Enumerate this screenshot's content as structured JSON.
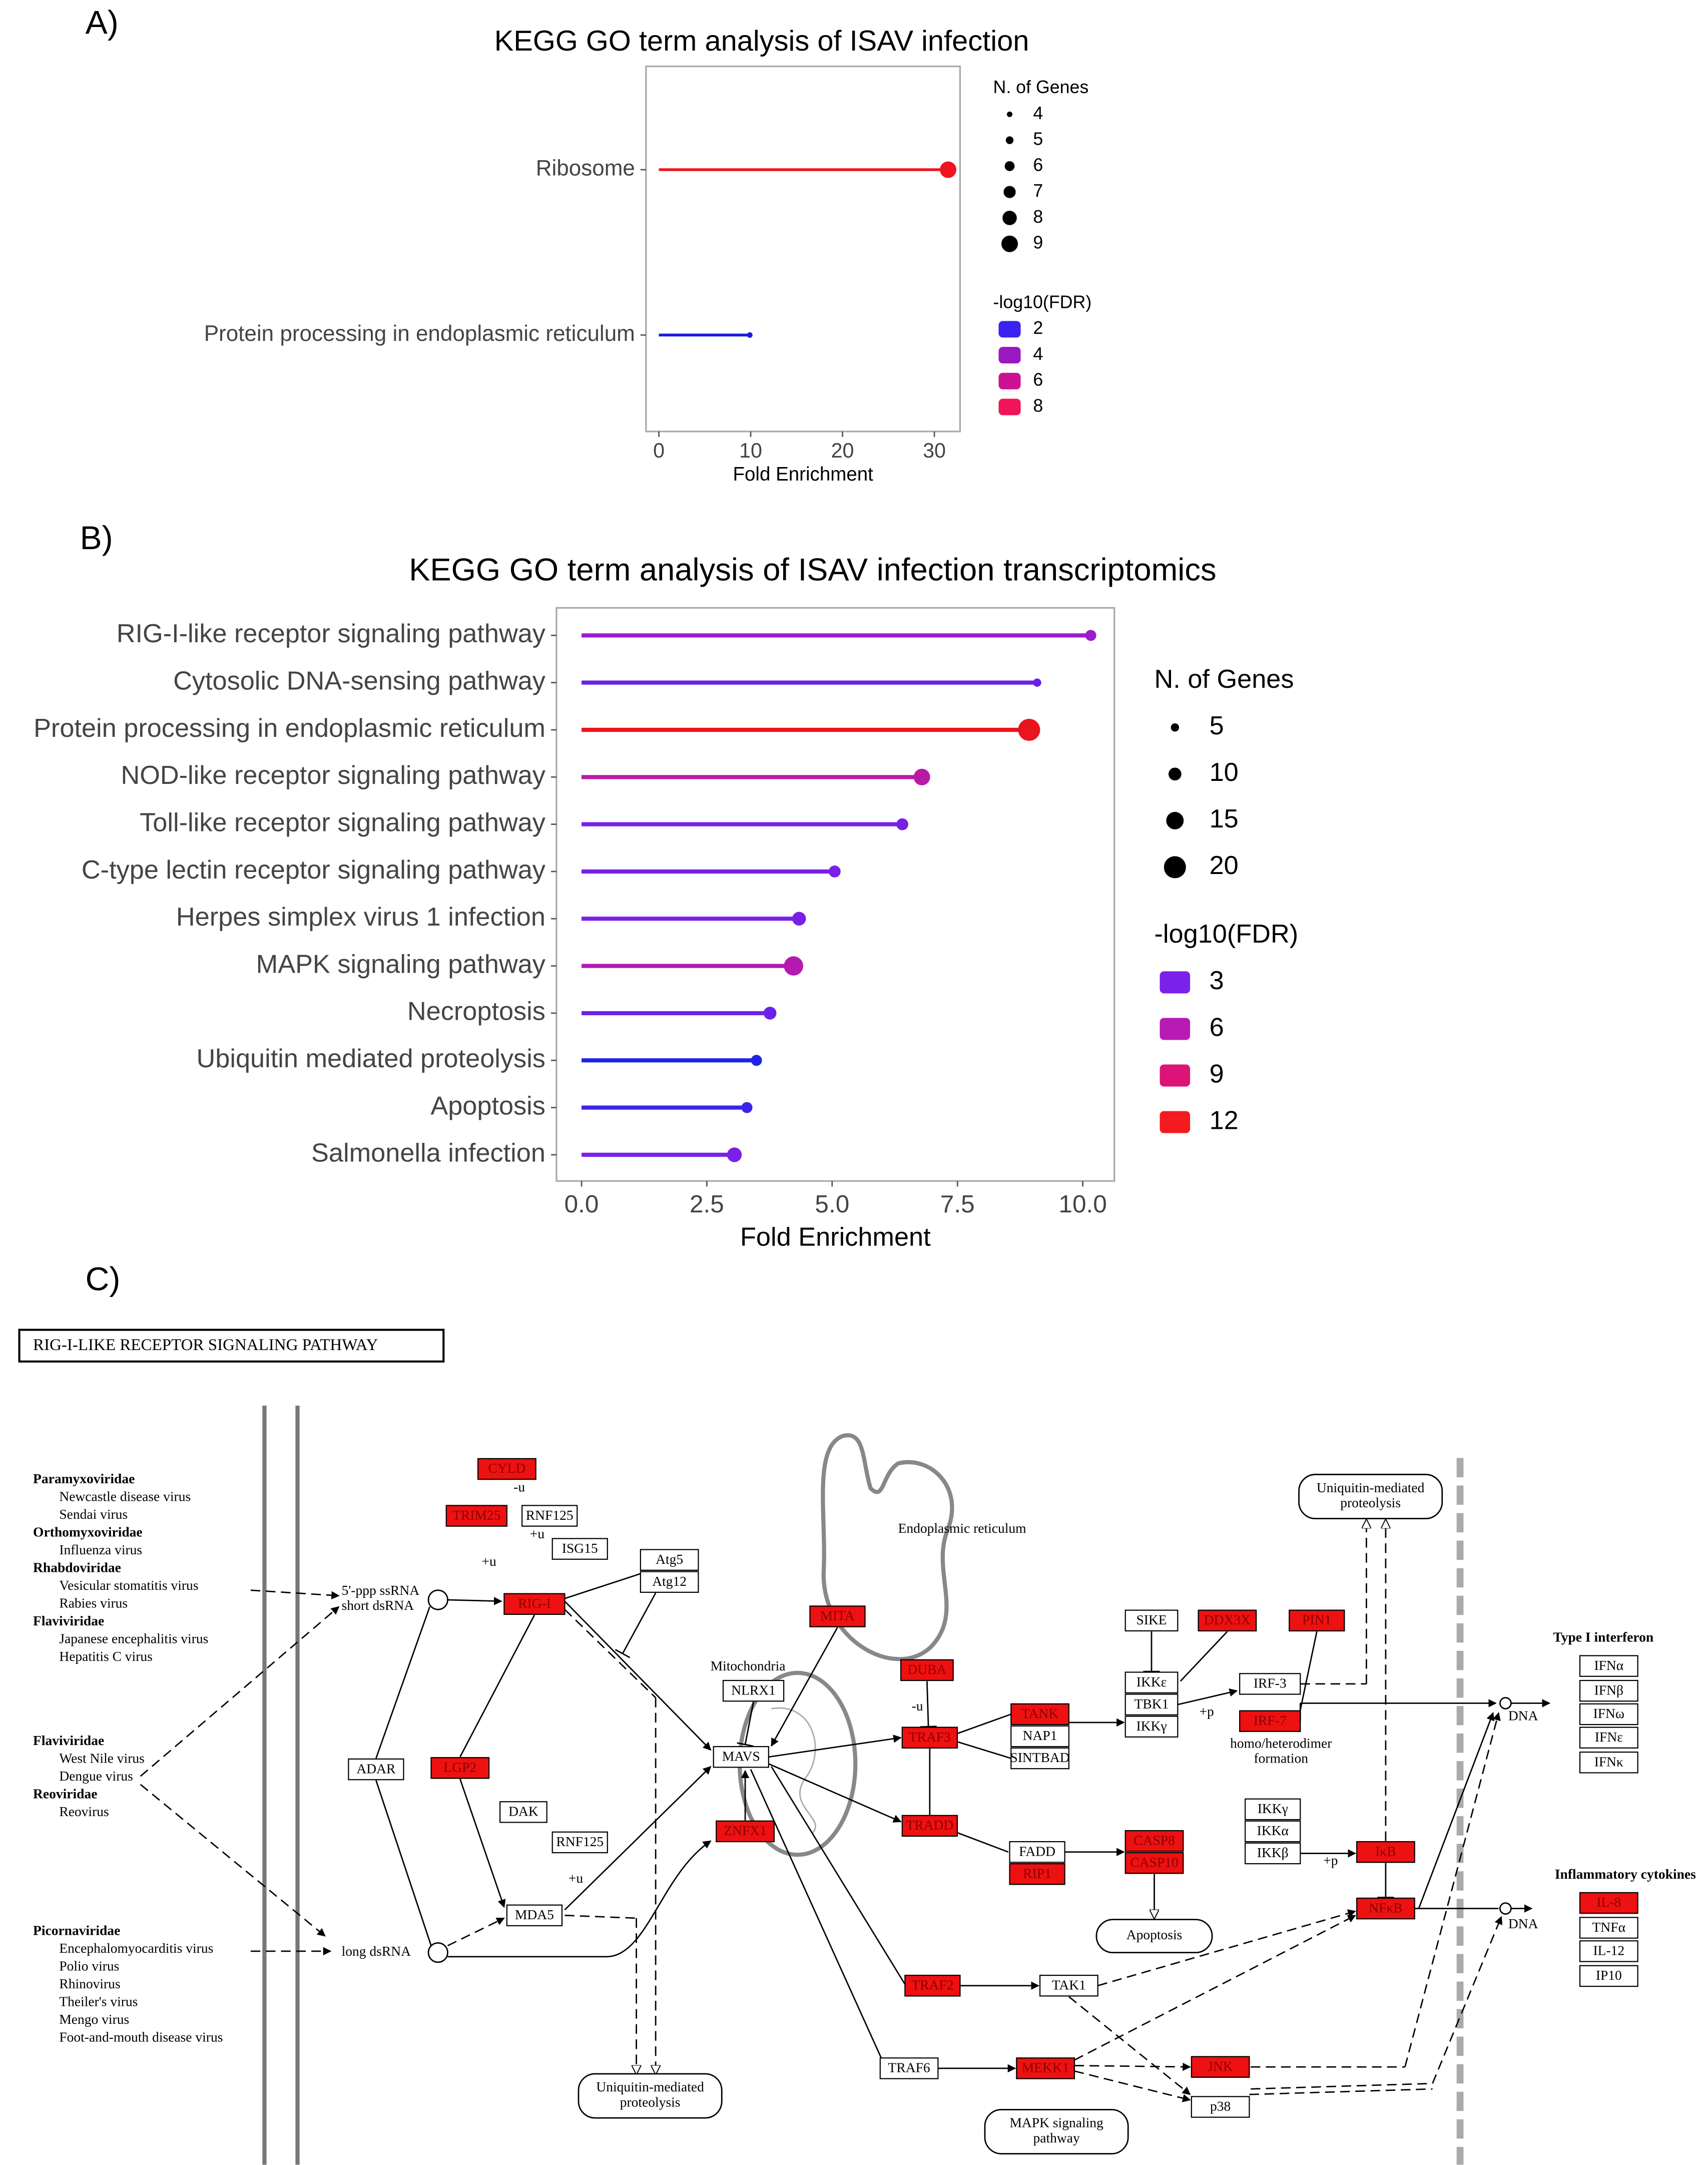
{
  "panels": [
    "A)",
    "B)",
    "C)"
  ],
  "chart_data": [
    {
      "type": "lollipop",
      "title": "KEGG GO term analysis of ISAV infection",
      "xlabel": "Fold Enrichment",
      "categories": [
        "Ribosome",
        "Protein processing in endoplasmic reticulum"
      ],
      "values": [
        31.5,
        9.9
      ],
      "point_colors": [
        "#f0141e",
        "#1a1ae0"
      ],
      "sizes": [
        9,
        4
      ],
      "xlim": [
        -1.4,
        32.8
      ],
      "xticks": [
        0,
        10,
        20,
        30
      ],
      "size_legend": {
        "title": "N. of Genes",
        "values": [
          4,
          5,
          6,
          7,
          8,
          9
        ]
      },
      "color_legend": {
        "title": "-log10(FDR)",
        "values": [
          2,
          4,
          6,
          8
        ],
        "colors": [
          "#3a22f0",
          "#9a18c0",
          "#cc1290",
          "#f0145a"
        ]
      }
    },
    {
      "type": "lollipop",
      "title": "KEGG GO term analysis of ISAV infection transcriptomics",
      "xlabel": "Fold Enrichment",
      "categories": [
        "RIG-I-like receptor signaling pathway",
        "Cytosolic DNA-sensing pathway",
        "Protein processing in endoplasmic reticulum",
        "NOD-like receptor signaling pathway",
        "Toll-like receptor signaling pathway",
        "C-type lectin receptor signaling pathway",
        "Herpes simplex virus 1 infection",
        "MAPK signaling pathway",
        "Necroptosis",
        "Ubiquitin mediated proteolysis",
        "Apoptosis",
        "Salmonella infection"
      ],
      "values": [
        10.16,
        9.09,
        8.93,
        6.79,
        6.4,
        5.05,
        4.34,
        4.23,
        3.76,
        3.49,
        3.3,
        3.05
      ],
      "point_colors": [
        "#9a1ccc",
        "#6a22ea",
        "#e8141e",
        "#b81aa6",
        "#7a20e6",
        "#7a20e6",
        "#7a20e6",
        "#b41ab0",
        "#6a22ea",
        "#1e24e6",
        "#3a24ea",
        "#7a20e6"
      ],
      "sizes": [
        8,
        5,
        20,
        14,
        9,
        9,
        11,
        17,
        10,
        8,
        8,
        12
      ],
      "xlim": [
        -0.5,
        10.63
      ],
      "xticks": [
        {
          "value": 0,
          "label": "0.0"
        },
        2.5,
        {
          "value": 5,
          "label": "5.0"
        },
        7.5,
        {
          "value": 10,
          "label": "10.0"
        }
      ],
      "size_legend": {
        "title": "N. of Genes",
        "values": [
          5,
          10,
          15,
          20
        ]
      },
      "color_legend": {
        "title": "-log10(FDR)",
        "values": [
          3,
          6,
          9,
          12
        ],
        "colors": [
          "#7a22ea",
          "#b81ab4",
          "#dc1478",
          "#f51a1e"
        ]
      }
    }
  ],
  "diagram": {
    "title": "RIG-I-LIKE RECEPTOR SIGNALING PATHWAY",
    "virus_blocks": [
      [
        [
          "Paramyxoviridae",
          "Newcastle disease virus",
          "Sendai virus"
        ],
        [
          "Orthomyxoviridae",
          "Influenza virus"
        ],
        [
          "Rhabdoviridae",
          "Vesicular stomatitis virus",
          "Rabies virus"
        ],
        [
          "Flaviviridae",
          "Japanese encephalitis virus",
          "Hepatitis C virus"
        ]
      ],
      [
        [
          "Flaviviridae",
          "West Nile virus",
          "Dengue virus"
        ],
        [
          "Reoviridae",
          "Reovirus"
        ]
      ],
      [
        [
          "Picornaviridae",
          "Encephalomyocarditis virus",
          "Polio virus",
          "Rhinovirus",
          "Theiler's virus",
          "Mengo virus",
          "Foot-and-mouth disease virus"
        ]
      ]
    ],
    "nodes": [
      {
        "label": "CYLD",
        "highlighted": true
      },
      {
        "label": "TRIM25",
        "highlighted": true
      },
      {
        "label": "RNF125",
        "highlighted": false
      },
      {
        "label": "ISG15",
        "highlighted": false
      },
      {
        "label": "RIG-I",
        "highlighted": true
      },
      {
        "label": "Atg5",
        "highlighted": false
      },
      {
        "label": "Atg12",
        "highlighted": false
      },
      {
        "label": "MITA",
        "highlighted": true
      },
      {
        "label": "SIKE",
        "highlighted": false
      },
      {
        "label": "DDX3X",
        "highlighted": true
      },
      {
        "label": "PIN1",
        "highlighted": true
      },
      {
        "label": "DUBA",
        "highlighted": true
      },
      {
        "label": "NLRX1",
        "highlighted": false
      },
      {
        "label": "MAVS",
        "highlighted": false
      },
      {
        "label": "TRAF3",
        "highlighted": true
      },
      {
        "label": "TANK",
        "highlighted": true
      },
      {
        "label": "NAP1",
        "highlighted": false
      },
      {
        "label": "SINTBAD",
        "highlighted": false
      },
      {
        "label": "IKKε",
        "highlighted": false
      },
      {
        "label": "TBK1",
        "highlighted": false
      },
      {
        "label": "IKKγ",
        "highlighted": false
      },
      {
        "label": "IRF-3",
        "highlighted": false
      },
      {
        "label": "IRF-7",
        "highlighted": true
      },
      {
        "label": "ADAR",
        "highlighted": false
      },
      {
        "label": "LGP2",
        "highlighted": true
      },
      {
        "label": "ZNFX1",
        "highlighted": true
      },
      {
        "label": "TRADD",
        "highlighted": true
      },
      {
        "label": "DAK",
        "highlighted": false
      },
      {
        "label": "RNF125",
        "highlighted": false
      },
      {
        "label": "MDA5",
        "highlighted": false
      },
      {
        "label": "FADD",
        "highlighted": false
      },
      {
        "label": "RIP1",
        "highlighted": true
      },
      {
        "label": "CASP8",
        "highlighted": true
      },
      {
        "label": "CASP10",
        "highlighted": true
      },
      {
        "label": "IKKγ",
        "highlighted": false
      },
      {
        "label": "IKKα",
        "highlighted": false
      },
      {
        "label": "IKKβ",
        "highlighted": false
      },
      {
        "label": "IκB",
        "highlighted": true
      },
      {
        "label": "NFκB",
        "highlighted": true
      },
      {
        "label": "TRAF2",
        "highlighted": true
      },
      {
        "label": "TAK1",
        "highlighted": false
      },
      {
        "label": "TRAF6",
        "highlighted": false
      },
      {
        "label": "MEKK1",
        "highlighted": true
      },
      {
        "label": "JNK",
        "highlighted": true
      },
      {
        "label": "p38",
        "highlighted": false
      },
      {
        "label": "IFNα",
        "highlighted": false
      },
      {
        "label": "IFNβ",
        "highlighted": false
      },
      {
        "label": "IFNω",
        "highlighted": false
      },
      {
        "label": "IFNε",
        "highlighted": false
      },
      {
        "label": "IFNκ",
        "highlighted": false
      },
      {
        "label": "IL-8",
        "highlighted": true
      },
      {
        "label": "TNFα",
        "highlighted": false
      },
      {
        "label": "IL-12",
        "highlighted": false
      },
      {
        "label": "IP10",
        "highlighted": false
      }
    ],
    "labels": [
      "Endoplasmic reticulum",
      "Mitochondria",
      "homo/heterodimer",
      "formation",
      "Type I interferon",
      "Inflammatory cytokines",
      "DNA",
      "DNA",
      "5'-ppp ssRNA",
      "short dsRNA",
      "long dsRNA",
      "-u",
      "+u",
      "+u",
      "-u",
      "+p",
      "+p",
      "+u"
    ],
    "pathway_boxes": [
      [
        "Uniquitin-mediated",
        "proteolysis"
      ],
      [
        "Apoptosis"
      ],
      [
        "Uniquitin-mediated",
        "proteolysis"
      ],
      [
        "MAPK signaling",
        "pathway"
      ]
    ]
  }
}
